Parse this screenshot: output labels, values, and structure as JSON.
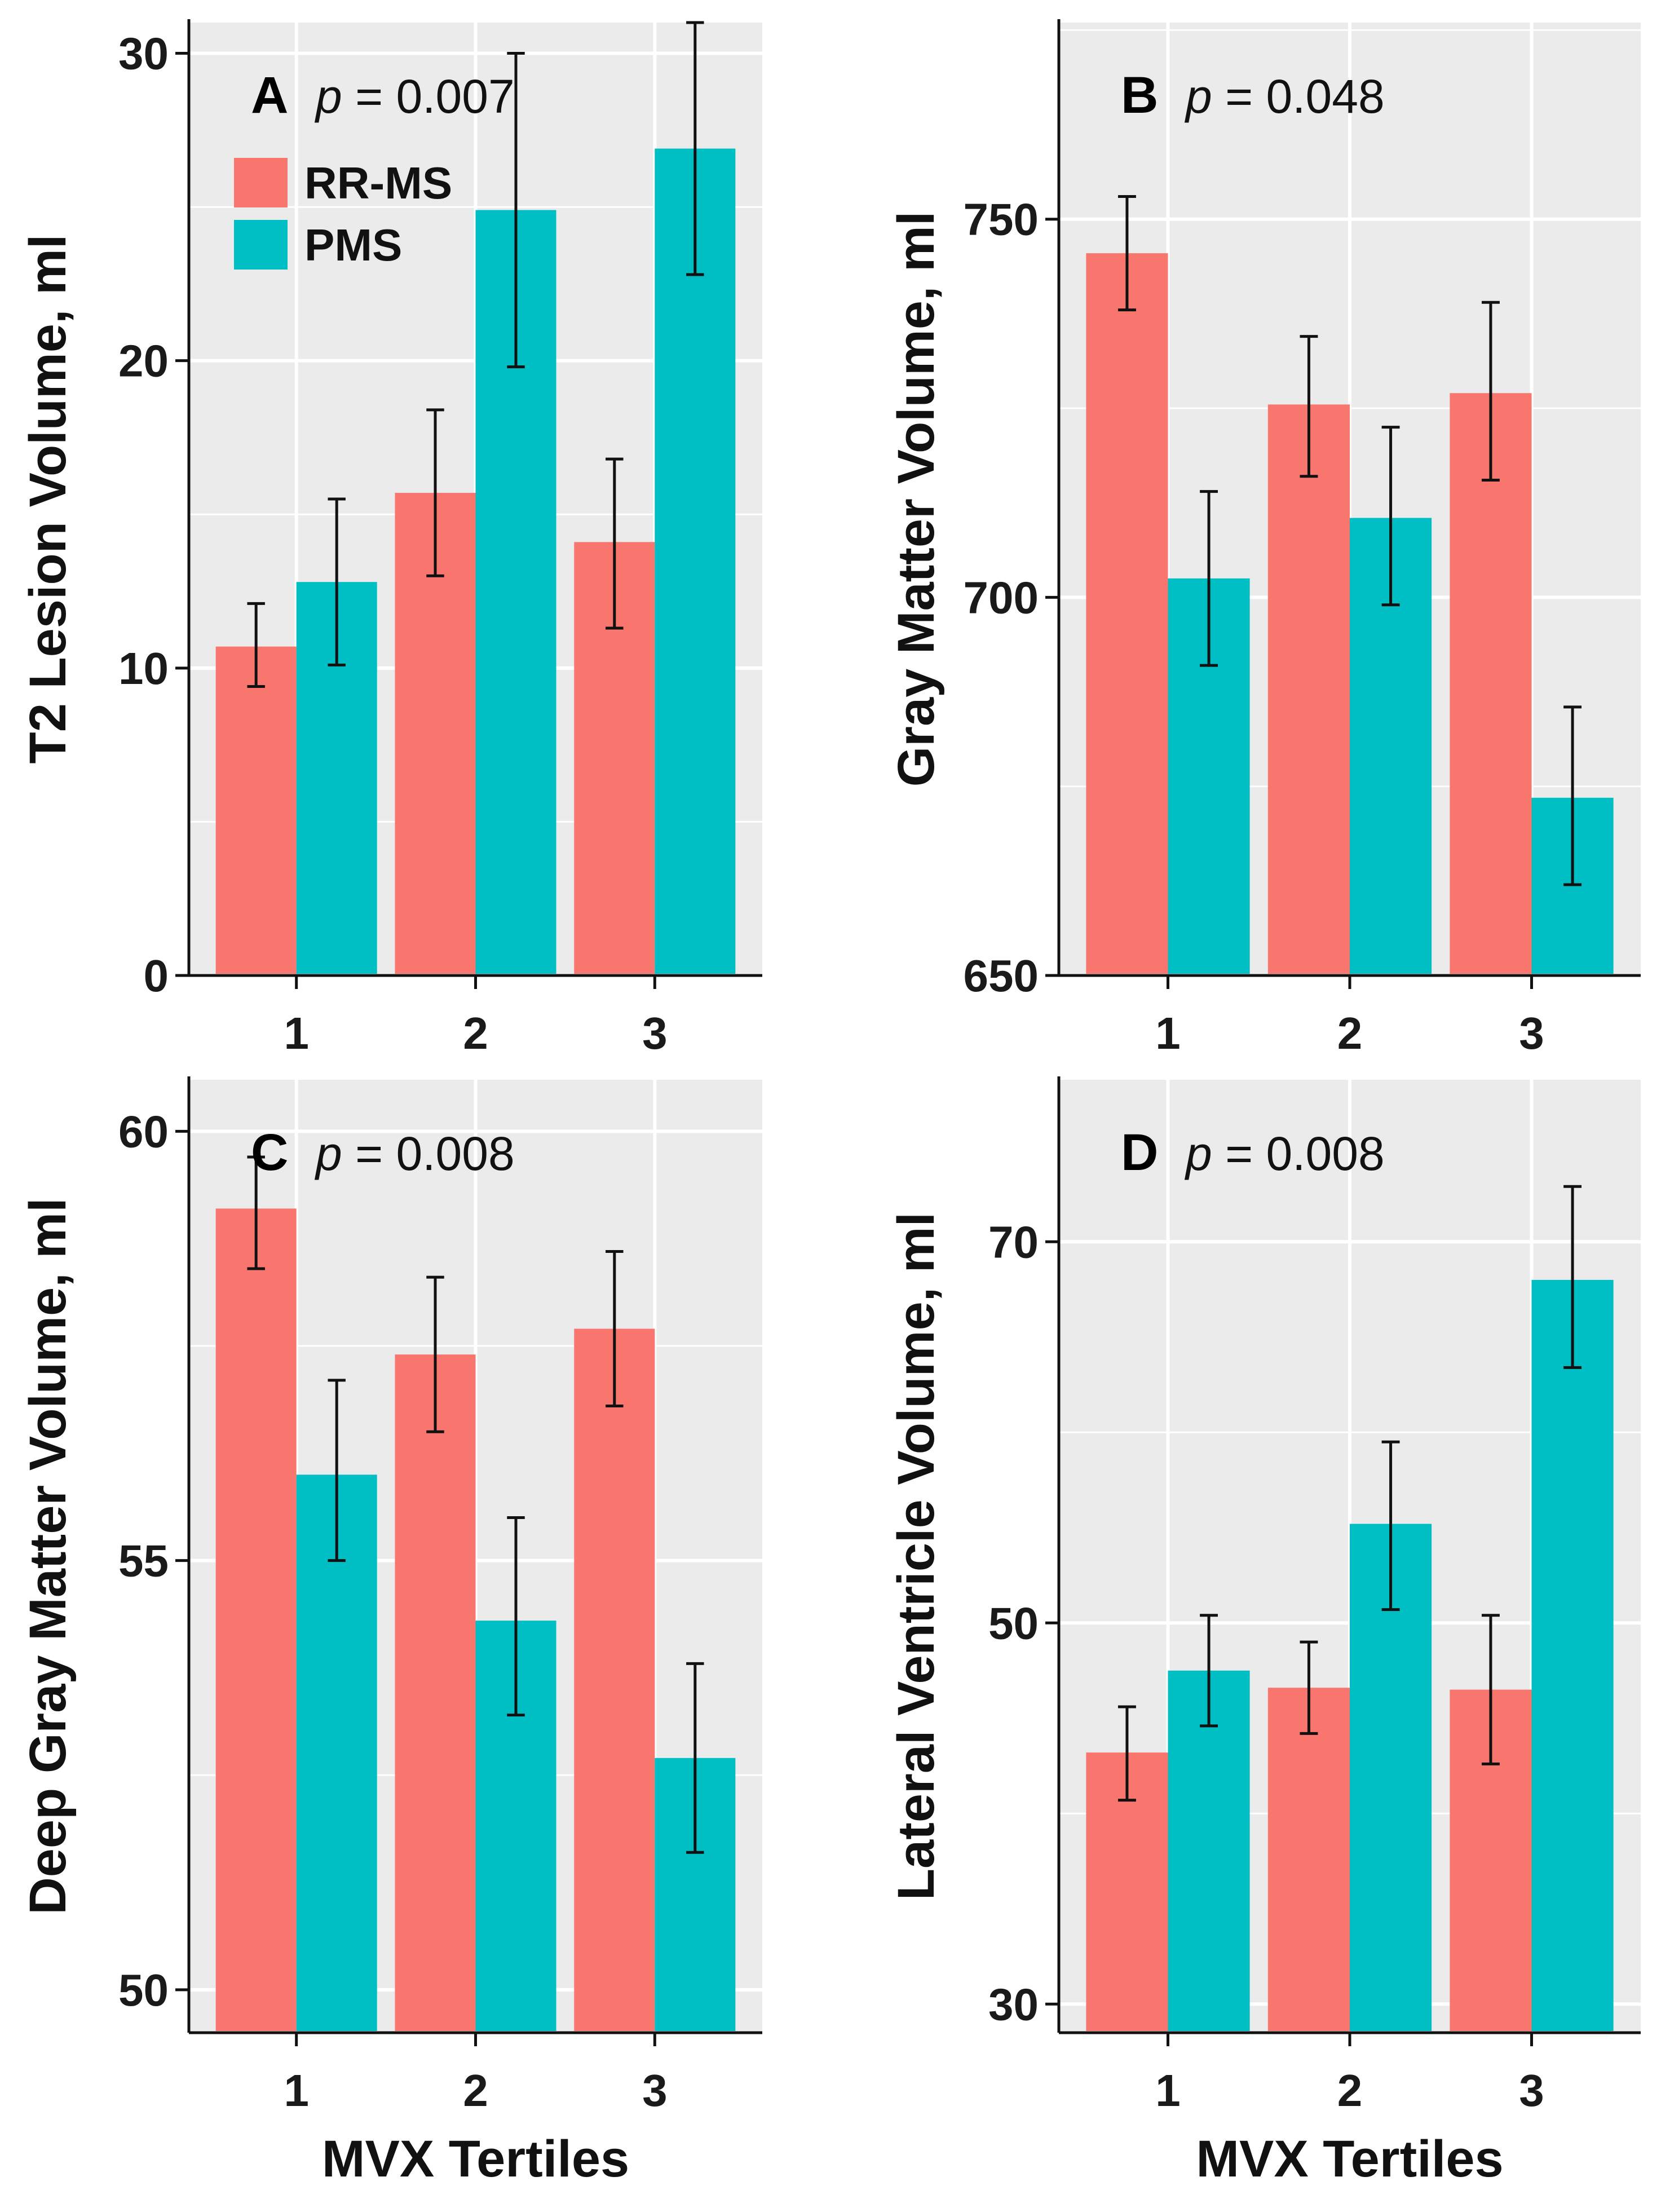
{
  "colors": {
    "rrms": "#f8766d",
    "pms": "#00bfc4"
  },
  "legend": {
    "items": [
      "RR-MS",
      "PMS"
    ]
  },
  "chart_data": [
    {
      "type": "bar",
      "panel": "A",
      "p_value": "p = 0.007",
      "ylabel": "T2 Lesion Volume, ml",
      "xlabel": "",
      "categories": [
        "1",
        "2",
        "3"
      ],
      "ylim": [
        0,
        31
      ],
      "yticks": [
        0,
        10,
        20,
        30
      ],
      "series": [
        {
          "name": "RR-MS",
          "values": [
            10.7,
            15.7,
            14.1
          ],
          "err_low": [
            9.4,
            13.0,
            11.3
          ],
          "err_high": [
            12.1,
            18.4,
            16.8
          ]
        },
        {
          "name": "PMS",
          "values": [
            12.8,
            24.9,
            26.9
          ],
          "err_low": [
            10.1,
            19.8,
            22.8
          ],
          "err_high": [
            15.5,
            30.0,
            31.0
          ]
        }
      ]
    },
    {
      "type": "bar",
      "panel": "B",
      "p_value": "p = 0.048",
      "ylabel": "Gray Matter Volume, ml",
      "xlabel": "",
      "categories": [
        "1",
        "2",
        "3"
      ],
      "ylim": [
        650,
        776
      ],
      "yticks": [
        650,
        700,
        750
      ],
      "series": [
        {
          "name": "RR-MS",
          "values": [
            745.5,
            725.5,
            727.0
          ],
          "err_low": [
            738.0,
            716.0,
            715.5
          ],
          "err_high": [
            753.0,
            734.5,
            739.0
          ]
        },
        {
          "name": "PMS",
          "values": [
            702.5,
            710.5,
            673.5
          ],
          "err_low": [
            691.0,
            699.0,
            662.0
          ],
          "err_high": [
            714.0,
            722.5,
            685.5
          ]
        }
      ]
    },
    {
      "type": "bar",
      "panel": "C",
      "p_value": "p = 0.008",
      "ylabel": "Deep Gray Matter Volume, ml",
      "xlabel": "MVX Tertiles",
      "categories": [
        "1",
        "2",
        "3"
      ],
      "ylim": [
        49.5,
        60.6
      ],
      "yticks": [
        50,
        55,
        60
      ],
      "series": [
        {
          "name": "RR-MS",
          "values": [
            59.1,
            57.4,
            57.7
          ],
          "err_low": [
            58.4,
            56.5,
            56.8
          ],
          "err_high": [
            59.7,
            58.3,
            58.6
          ]
        },
        {
          "name": "PMS",
          "values": [
            56.0,
            54.3,
            52.7
          ],
          "err_low": [
            55.0,
            53.2,
            51.6
          ],
          "err_high": [
            57.1,
            55.5,
            53.8
          ]
        }
      ]
    },
    {
      "type": "bar",
      "panel": "D",
      "p_value": "p = 0.008",
      "ylabel": "Lateral Ventricle Volume, ml",
      "xlabel": "MVX Tertiles",
      "categories": [
        "1",
        "2",
        "3"
      ],
      "ylim": [
        28.5,
        78.5
      ],
      "yticks": [
        30,
        50,
        70
      ],
      "series": [
        {
          "name": "RR-MS",
          "values": [
            43.2,
            46.6,
            46.5
          ],
          "err_low": [
            40.7,
            44.2,
            42.6
          ],
          "err_high": [
            45.6,
            49.0,
            50.4
          ]
        },
        {
          "name": "PMS",
          "values": [
            47.5,
            55.2,
            68.0
          ],
          "err_low": [
            44.6,
            50.7,
            63.4
          ],
          "err_high": [
            50.4,
            59.5,
            72.9
          ]
        }
      ]
    }
  ]
}
